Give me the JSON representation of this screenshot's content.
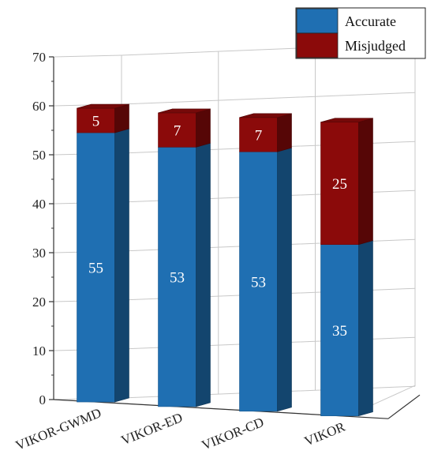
{
  "chart_data": {
    "type": "bar",
    "stacked": true,
    "three_d": true,
    "categories": [
      "VIKOR-GWMD",
      "VIKOR-ED",
      "VIKOR-CD",
      "VIKOR"
    ],
    "series": [
      {
        "name": "Accurate",
        "values": [
          55,
          53,
          53,
          35
        ],
        "color": "#1f6fb2"
      },
      {
        "name": "Misjudged",
        "values": [
          5,
          7,
          7,
          25
        ],
        "color": "#8b0a0a"
      }
    ],
    "ylim": [
      0,
      70
    ],
    "yticks": [
      "0",
      "10",
      "20",
      "30",
      "40",
      "50",
      "60",
      "70"
    ],
    "grid": true,
    "legend_position": "top-right"
  }
}
